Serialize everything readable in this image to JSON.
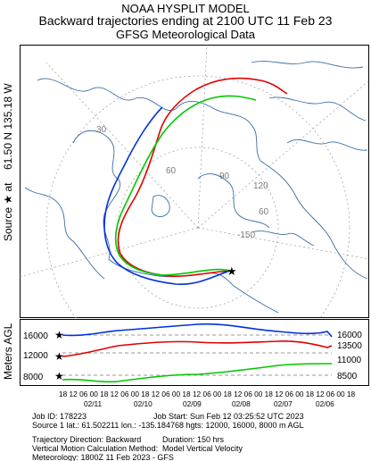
{
  "header": {
    "line1": "NOAA HYSPLIT MODEL",
    "line2": "Backward trajectories ending at 2100 UTC 11 Feb 23",
    "line3": "GFSG Meteorological Data"
  },
  "side_labels": {
    "source": "Source ★ at",
    "coords": "61.50 N 135.18 W",
    "vertical": "Meters AGL"
  },
  "map_labels": {
    "lon_30": "30",
    "lon_60": "60",
    "lat_90": "90",
    "lat_120": "120",
    "lon_60b": "60",
    "lat_150": "-150"
  },
  "height_panel": {
    "y_left": [
      "16000",
      "12000",
      "8000"
    ],
    "y_right": [
      "16000",
      "13500",
      "11000",
      "8500"
    ],
    "time_ticks": "18 12 06 00 18 12 06 00 18 12 06 00 18 12 06 00 18 12 06 00 18 12 06 00 18 12 06 00 18",
    "date_ticks": [
      "02/11",
      "02/10",
      "02/09",
      "02/08",
      "02/07",
      "02/06"
    ]
  },
  "info": {
    "job": "Job ID: 178223",
    "job_start": "Job Start: Sun Feb 12 03:25:52 UTC 2023",
    "source1": "Source 1    lat.: 61.502211    lon.: -135.184768    hgts: 12000, 16000, 8000 m AGL",
    "direction": "Trajectory Direction: Backward",
    "duration": "Duration: 150 hrs",
    "vertical_method": "Vertical Motion Calculation Method:",
    "vertical_value": "Model Vertical Velocity",
    "meteorology": "Meteorology: 1800Z 11 Feb 2023 - GFS"
  },
  "colors": {
    "red": "#e00000",
    "blue": "#0030e0",
    "green": "#00c800",
    "map": "#3a6ea8"
  },
  "series": [
    {
      "color_key": "red",
      "start_height_m": 12000
    },
    {
      "color_key": "blue",
      "start_height_m": 16000
    },
    {
      "color_key": "green",
      "start_height_m": 8000
    }
  ]
}
